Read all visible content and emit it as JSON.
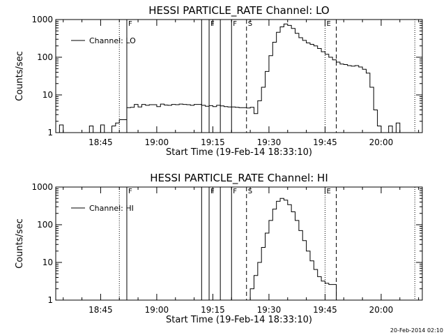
{
  "footer_timestamp": "20-Feb-2014 02:10",
  "chart_data": [
    {
      "type": "line",
      "title": "HESSI PARTICLE_RATE Channel: LO",
      "xlabel": "Start Time (19-Feb-14 18:33:10)",
      "ylabel": "Counts/sec",
      "y_scale": "log",
      "ylim": [
        1,
        1000
      ],
      "xlim": [
        "18:33",
        "20:11"
      ],
      "x_ticks": [
        "18:45",
        "19:00",
        "19:15",
        "19:30",
        "19:45",
        "20:00"
      ],
      "y_ticks": [
        "1",
        "10",
        "100",
        "1000"
      ],
      "legend": {
        "position": "top-left",
        "entries": [
          "Channel: LO"
        ]
      },
      "series": [
        {
          "name": "Channel: LO",
          "x": [
            "18:33",
            "18:34",
            "18:35",
            "18:36",
            "18:37",
            "18:38",
            "18:39",
            "18:40",
            "18:41",
            "18:42",
            "18:43",
            "18:44",
            "18:45",
            "18:46",
            "18:47",
            "18:48",
            "18:49",
            "18:50",
            "18:51",
            "18:52",
            "18:53",
            "18:54",
            "18:55",
            "18:56",
            "18:57",
            "18:58",
            "18:59",
            "19:00",
            "19:01",
            "19:02",
            "19:03",
            "19:04",
            "19:05",
            "19:06",
            "19:07",
            "19:08",
            "19:09",
            "19:10",
            "19:11",
            "19:12",
            "19:13",
            "19:14",
            "19:15",
            "19:16",
            "19:17",
            "19:18",
            "19:19",
            "19:20",
            "19:21",
            "19:22",
            "19:23",
            "19:24",
            "19:25",
            "19:26",
            "19:27",
            "19:28",
            "19:29",
            "19:30",
            "19:31",
            "19:32",
            "19:33",
            "19:34",
            "19:35",
            "19:36",
            "19:37",
            "19:38",
            "19:39",
            "19:40",
            "19:41",
            "19:42",
            "19:43",
            "19:44",
            "19:45",
            "19:46",
            "19:47",
            "19:48",
            "19:49",
            "19:50",
            "19:51",
            "19:52",
            "19:53",
            "19:54",
            "19:55",
            "19:56",
            "19:57",
            "19:58",
            "19:59",
            "20:00",
            "20:01",
            "20:02",
            "20:03",
            "20:04",
            "20:05",
            "20:06",
            "20:07"
          ],
          "y": [
            1,
            1.6,
            1,
            1,
            1,
            1,
            1,
            1,
            1,
            1.5,
            1,
            1,
            1.6,
            1,
            1,
            1.5,
            1.8,
            2.2,
            2.2,
            4.6,
            4.7,
            5.6,
            4.8,
            5.6,
            5.3,
            5.5,
            5.5,
            4.9,
            5.7,
            5.4,
            5.3,
            5.6,
            5.5,
            5.7,
            5.6,
            5.5,
            5.3,
            5.6,
            5.6,
            5.3,
            5.0,
            5.2,
            4.9,
            5.3,
            5.1,
            4.9,
            4.8,
            4.8,
            4.7,
            4.6,
            4.6,
            4.5,
            4.7,
            3.2,
            7,
            16,
            42,
            110,
            250,
            460,
            640,
            760,
            700,
            580,
            430,
            330,
            280,
            240,
            220,
            200,
            170,
            140,
            120,
            100,
            85,
            74,
            66,
            64,
            60,
            58,
            60,
            55,
            48,
            38,
            16,
            4,
            1.5,
            1,
            1,
            1.5,
            1,
            1.8,
            1,
            1,
            1
          ]
        }
      ],
      "markers": [
        {
          "type": "dotted",
          "x": "18:50"
        },
        {
          "type": "solid",
          "x": "18:52",
          "label": "F"
        },
        {
          "type": "solid",
          "x": "19:12"
        },
        {
          "type": "solid",
          "x": "19:14",
          "label": "F"
        },
        {
          "type": "solid",
          "x": "19:17"
        },
        {
          "type": "solid",
          "x": "19:20",
          "label": "F"
        },
        {
          "type": "dashed",
          "x": "19:24",
          "label": "S"
        },
        {
          "type": "dotted",
          "x": "19:45",
          "label": "E"
        },
        {
          "type": "dashed",
          "x": "19:48"
        },
        {
          "type": "dotted",
          "x": "20:09"
        }
      ]
    },
    {
      "type": "line",
      "title": "HESSI PARTICLE_RATE Channel: HI",
      "xlabel": "Start Time (19-Feb-14 18:33:10)",
      "ylabel": "Counts/sec",
      "y_scale": "log",
      "ylim": [
        1,
        1000
      ],
      "xlim": [
        "18:33",
        "20:11"
      ],
      "x_ticks": [
        "18:45",
        "19:00",
        "19:15",
        "19:30",
        "19:45",
        "20:00"
      ],
      "y_ticks": [
        "1",
        "10",
        "100",
        "1000"
      ],
      "legend": {
        "position": "top-left",
        "entries": [
          "Channel: HI"
        ]
      },
      "series": [
        {
          "name": "Channel: HI",
          "x": [
            "19:24",
            "19:25",
            "19:26",
            "19:27",
            "19:28",
            "19:29",
            "19:30",
            "19:31",
            "19:32",
            "19:33",
            "19:34",
            "19:35",
            "19:36",
            "19:37",
            "19:38",
            "19:39",
            "19:40",
            "19:41",
            "19:42",
            "19:43",
            "19:44",
            "19:45",
            "19:46",
            "19:47",
            "19:48"
          ],
          "y": [
            1,
            2,
            4.5,
            10,
            25,
            60,
            130,
            260,
            420,
            500,
            450,
            340,
            220,
            130,
            70,
            38,
            20,
            11,
            6.5,
            4.2,
            3.2,
            2.8,
            2.6,
            2.6,
            1
          ]
        }
      ],
      "markers": [
        {
          "type": "dotted",
          "x": "18:50"
        },
        {
          "type": "solid",
          "x": "18:52",
          "label": "F"
        },
        {
          "type": "solid",
          "x": "19:12"
        },
        {
          "type": "solid",
          "x": "19:14",
          "label": "F"
        },
        {
          "type": "solid",
          "x": "19:17"
        },
        {
          "type": "solid",
          "x": "19:20",
          "label": "F"
        },
        {
          "type": "dashed",
          "x": "19:24",
          "label": "S"
        },
        {
          "type": "dotted",
          "x": "19:45",
          "label": "E"
        },
        {
          "type": "dashed",
          "x": "19:48"
        },
        {
          "type": "dotted",
          "x": "20:09"
        }
      ]
    }
  ]
}
